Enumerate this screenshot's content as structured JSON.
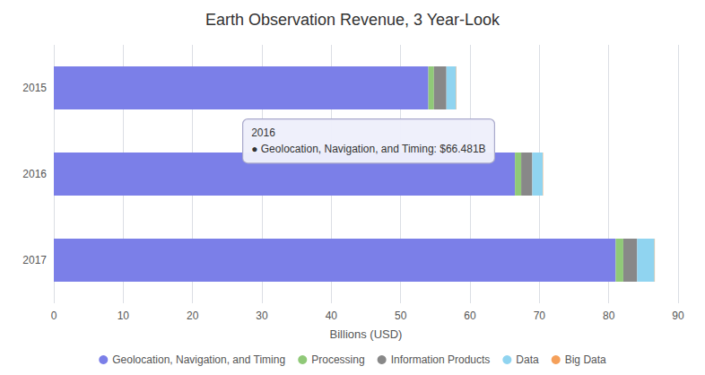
{
  "chart_data": {
    "type": "bar",
    "orientation": "horizontal",
    "stacked": true,
    "title": "Earth Observation Revenue, 3 Year-Look",
    "xlabel": "Billions (USD)",
    "categories": [
      "2015",
      "2016",
      "2017"
    ],
    "series": [
      {
        "name": "Geolocation, Navigation, and Timing",
        "color": "#7b7fe8",
        "values": [
          54.0,
          66.481,
          81.0
        ]
      },
      {
        "name": "Processing",
        "color": "#90c978",
        "values": [
          0.8,
          0.9,
          1.1
        ]
      },
      {
        "name": "Information Products",
        "color": "#888888",
        "values": [
          1.8,
          1.6,
          2.0
        ]
      },
      {
        "name": "Data",
        "color": "#90d4f0",
        "values": [
          1.4,
          1.5,
          2.5
        ]
      },
      {
        "name": "Big Data",
        "color": "#f5a05a",
        "values": [
          0.05,
          0.05,
          0.05
        ]
      }
    ],
    "xlim": [
      0,
      90
    ],
    "xticks": [
      0,
      10,
      20,
      30,
      40,
      50,
      60,
      70,
      80,
      90
    ],
    "grid": true,
    "legend": "bottom",
    "annotations": [
      "2016\n● Geolocation, Navigation, and Timing: $66.481B"
    ]
  }
}
